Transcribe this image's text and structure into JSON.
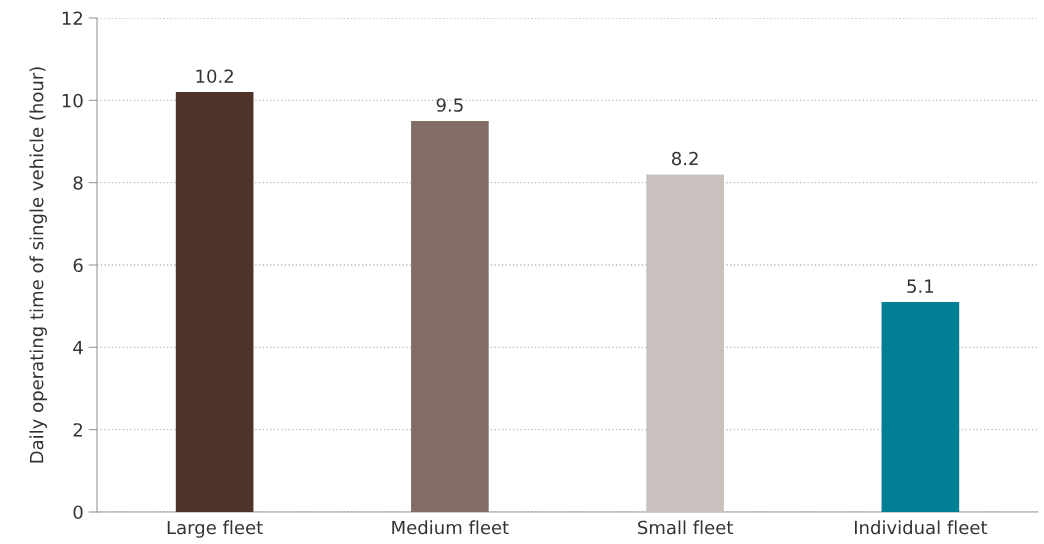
{
  "chart_data": {
    "type": "bar",
    "ylabel": "Daily operating time of single vehicle (hour)",
    "categories": [
      "Large fleet",
      "Medium fleet",
      "Small fleet",
      "Individual fleet"
    ],
    "values": [
      10.2,
      9.5,
      8.2,
      5.1
    ],
    "colors": [
      "#4e3328",
      "#816d65",
      "#c9c1bd",
      "#007f94"
    ],
    "ylim": [
      0,
      12
    ],
    "yticks": [
      0,
      2,
      4,
      6,
      8,
      10,
      12
    ],
    "grid": "y",
    "data_labels": true,
    "legend": false
  }
}
